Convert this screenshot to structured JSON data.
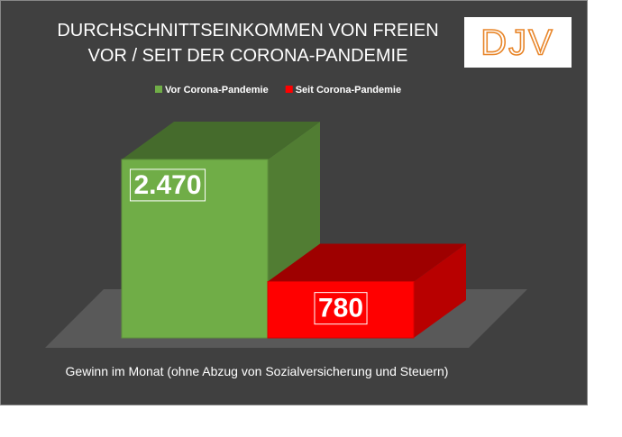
{
  "chart_data": {
    "type": "bar3d",
    "title": "DURCHSCHNITTSEINKOMMEN VON FREIEN\nVOR / SEIT DER CORONA-PANDEMIE",
    "logo": "DJV",
    "categories": [
      "Gewinn im Monat (ohne Abzug von Sozialversicherung und Steuern)"
    ],
    "series": [
      {
        "name": "Vor Corona-Pandemie",
        "color": "#70ad47",
        "values": [
          2470
        ],
        "value_labels": [
          "2.470"
        ]
      },
      {
        "name": "Seit Corona-Pandemie",
        "color": "#ff0000",
        "values": [
          780
        ],
        "value_labels": [
          "780"
        ]
      }
    ]
  }
}
